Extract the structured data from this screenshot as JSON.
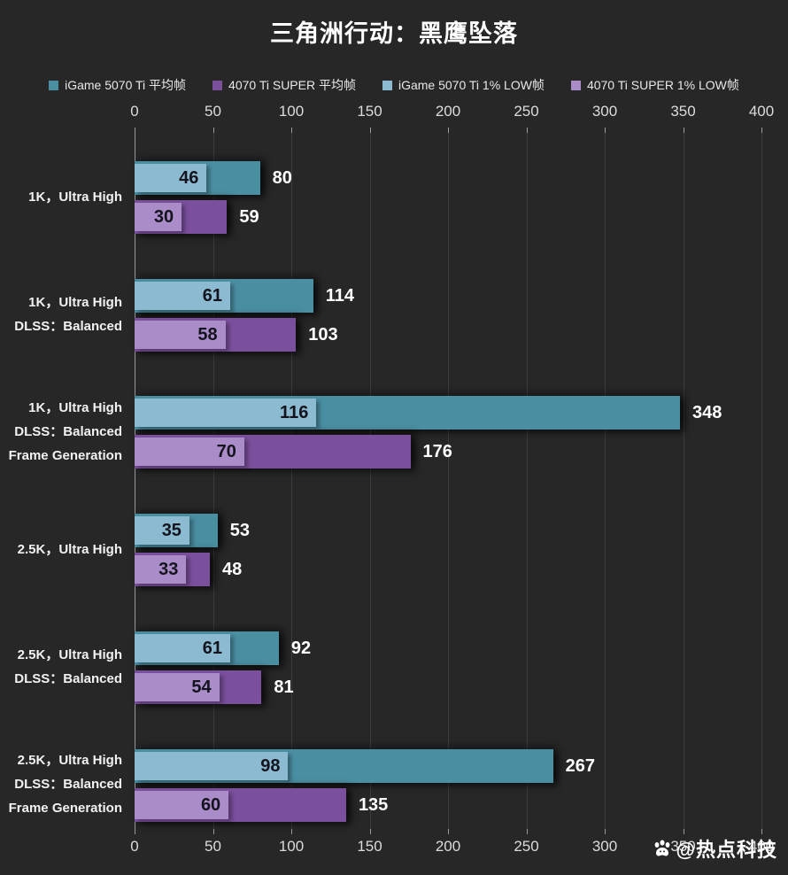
{
  "title": "三角洲行动：黑鹰坠落",
  "watermark": {
    "text": "@热点科技"
  },
  "colors": {
    "background": "#272727",
    "avg_5070": "#4a8ea2",
    "avg_4070": "#7a4f9c",
    "low_5070": "#8cbbd1",
    "low_4070": "#aa8cc9",
    "gridline": "#3d3d3d",
    "axis": "#9a9a9a",
    "tick_label": "#dcdcdc",
    "value_outside": "#ffffff",
    "value_inside": "#14141e"
  },
  "legend": [
    {
      "label": "iGame 5070 Ti 平均帧",
      "color_key": "avg_5070"
    },
    {
      "label": "4070 Ti SUPER 平均帧",
      "color_key": "avg_4070"
    },
    {
      "label": "iGame 5070 Ti 1% LOW帧",
      "color_key": "low_5070"
    },
    {
      "label": "4070 Ti SUPER 1% LOW帧",
      "color_key": "low_4070"
    }
  ],
  "chart_data": {
    "type": "bar",
    "orientation": "horizontal",
    "title": "三角洲行动：黑鹰坠落",
    "xlabel": "",
    "ylabel": "",
    "x_axis": {
      "min": 0,
      "max": 400,
      "tick_interval": 50,
      "ticks": [
        0,
        50,
        100,
        150,
        200,
        250,
        300,
        350,
        400
      ],
      "label_position": "top_and_bottom"
    },
    "grid": true,
    "legend_position": "top",
    "categories": [
      {
        "lines": [
          "1K，Ultra High"
        ]
      },
      {
        "lines": [
          "1K，Ultra High",
          "DLSS：Balanced"
        ]
      },
      {
        "lines": [
          "1K，Ultra High",
          "DLSS：Balanced",
          "Frame Generation"
        ]
      },
      {
        "lines": [
          "2.5K，Ultra High"
        ]
      },
      {
        "lines": [
          "2.5K，Ultra High",
          "DLSS：Balanced"
        ]
      },
      {
        "lines": [
          "2.5K，Ultra High",
          "DLSS：Balanced",
          "Frame Generation"
        ]
      }
    ],
    "series": [
      {
        "name": "iGame 5070 Ti 平均帧",
        "color_key": "avg_5070",
        "role": "main",
        "row": 0,
        "values": [
          80,
          114,
          348,
          53,
          92,
          267
        ]
      },
      {
        "name": "4070 Ti SUPER 平均帧",
        "color_key": "avg_4070",
        "role": "main",
        "row": 1,
        "values": [
          59,
          103,
          176,
          48,
          81,
          135
        ]
      },
      {
        "name": "iGame 5070 Ti 1% LOW帧",
        "color_key": "low_5070",
        "role": "overlay",
        "row": 0,
        "values": [
          46,
          61,
          116,
          35,
          61,
          98
        ]
      },
      {
        "name": "4070 Ti SUPER 1% LOW帧",
        "color_key": "low_4070",
        "role": "overlay",
        "row": 1,
        "values": [
          30,
          58,
          70,
          33,
          54,
          60
        ]
      }
    ]
  }
}
